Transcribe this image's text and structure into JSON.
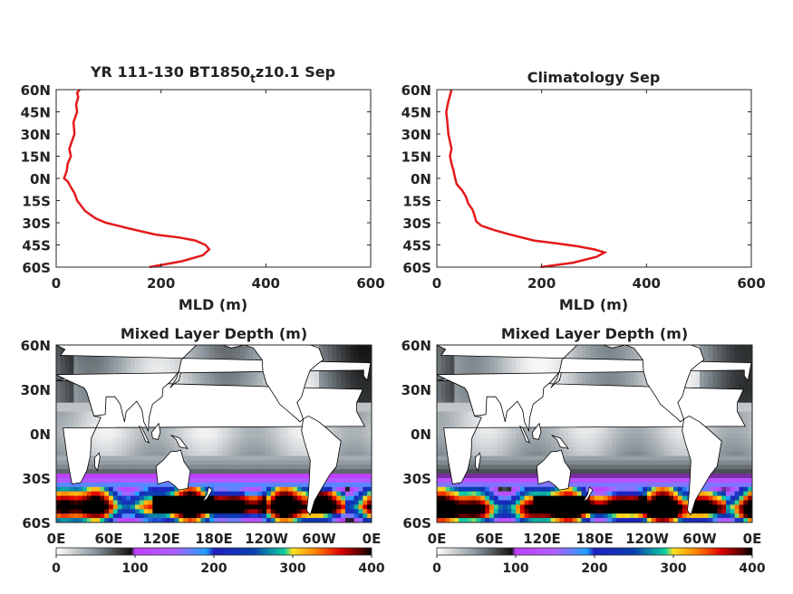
{
  "colors": {
    "profile_line": "#e41a1c",
    "land": "#ffffff",
    "frame": "#262626"
  },
  "colorbar": {
    "ticks": [
      "0",
      "100",
      "200",
      "300",
      "400"
    ],
    "stops": [
      {
        "v": 0,
        "c": "#ffffff"
      },
      {
        "v": 50,
        "c": "#8a949a"
      },
      {
        "v": 95,
        "c": "#111111"
      },
      {
        "v": 100,
        "c": "#c040ff"
      },
      {
        "v": 150,
        "c": "#b060ff"
      },
      {
        "v": 190,
        "c": "#20a0ff"
      },
      {
        "v": 200,
        "c": "#2020c0"
      },
      {
        "v": 250,
        "c": "#0a40b0"
      },
      {
        "v": 290,
        "c": "#10d0a0"
      },
      {
        "v": 300,
        "c": "#ffe020"
      },
      {
        "v": 330,
        "c": "#ff8000"
      },
      {
        "v": 360,
        "c": "#e00000"
      },
      {
        "v": 385,
        "c": "#600000"
      },
      {
        "v": 400,
        "c": "#000000"
      }
    ]
  },
  "chart_data": [
    {
      "type": "line",
      "title": "YR 111-130 BT1850",
      "title_sub": "t",
      "title_tail": "z10.1 Sep",
      "xlabel": "MLD (m)",
      "ylabel": "",
      "xlim": [
        0,
        600
      ],
      "ylim": [
        -60,
        60
      ],
      "xticks": [
        0,
        200,
        400,
        600
      ],
      "yticks": [
        60,
        45,
        30,
        15,
        0,
        -15,
        -30,
        -45,
        -60
      ],
      "ytick_labels": [
        "60N",
        "45N",
        "30N",
        "15N",
        "0N",
        "15S",
        "30S",
        "45S",
        "60S"
      ],
      "series": [
        {
          "name": "",
          "x": [
            178,
            240,
            280,
            292,
            285,
            265,
            235,
            190,
            140,
            95,
            75,
            55,
            40,
            35,
            28,
            22,
            15,
            20,
            22,
            28,
            25,
            30,
            35,
            33,
            40,
            38,
            42,
            40,
            45
          ],
          "y": [
            -60,
            -56,
            -52,
            -48,
            -45,
            -42,
            -40,
            -38,
            -34,
            -30,
            -27,
            -22,
            -15,
            -10,
            -6,
            -2,
            0,
            5,
            10,
            15,
            20,
            25,
            30,
            38,
            45,
            50,
            55,
            58,
            60
          ]
        }
      ]
    },
    {
      "type": "line",
      "title": "Climatology Sep",
      "xlabel": "MLD (m)",
      "ylabel": "",
      "xlim": [
        0,
        600
      ],
      "ylim": [
        -60,
        60
      ],
      "xticks": [
        0,
        200,
        400,
        600
      ],
      "yticks": [
        60,
        45,
        30,
        15,
        0,
        -15,
        -30,
        -45,
        -60
      ],
      "ytick_labels": [
        "60N",
        "45N",
        "30N",
        "15N",
        "0N",
        "15S",
        "30S",
        "45S",
        "60S"
      ],
      "series": [
        {
          "name": "",
          "x": [
            198,
            260,
            305,
            320,
            300,
            270,
            230,
            185,
            140,
            110,
            85,
            75,
            72,
            68,
            60,
            55,
            48,
            38,
            35,
            32,
            28,
            25,
            28,
            22,
            20,
            18,
            22,
            25,
            28
          ],
          "y": [
            -60,
            -57,
            -53,
            -50,
            -48,
            -46,
            -44,
            -42,
            -38,
            -35,
            -32,
            -29,
            -25,
            -21,
            -17,
            -12,
            -8,
            -4,
            0,
            5,
            10,
            15,
            20,
            30,
            38,
            45,
            52,
            56,
            60
          ]
        }
      ]
    },
    {
      "type": "heatmap",
      "title": "Mixed Layer Depth (m)",
      "xtick_labels": [
        "0E",
        "60E",
        "120E",
        "180E",
        "120W",
        "60W",
        "0E"
      ],
      "ytick_labels": [
        "60N",
        "30N",
        "0N",
        "30S",
        "60S"
      ],
      "xlim": [
        0,
        360
      ],
      "ylim": [
        -60,
        60
      ],
      "clim": [
        0,
        400
      ],
      "zonal_mean_mld": {
        "lat": [
          60,
          45,
          30,
          15,
          0,
          -15,
          -25,
          -30,
          -35,
          -40,
          -45,
          -50,
          -55,
          -60
        ],
        "mld": [
          40,
          35,
          30,
          28,
          20,
          35,
          60,
          120,
          180,
          260,
          330,
          380,
          300,
          180
        ]
      }
    },
    {
      "type": "heatmap",
      "title": "Mixed Layer Depth (m)",
      "xtick_labels": [
        "0E",
        "60E",
        "120E",
        "180E",
        "120W",
        "60W",
        "0E"
      ],
      "ytick_labels": [
        "60N",
        "30N",
        "0N",
        "30S",
        "60S"
      ],
      "xlim": [
        0,
        360
      ],
      "ylim": [
        -60,
        60
      ],
      "clim": [
        0,
        400
      ],
      "zonal_mean_mld": {
        "lat": [
          60,
          45,
          30,
          15,
          0,
          -15,
          -25,
          -30,
          -35,
          -40,
          -45,
          -50,
          -55,
          -60
        ],
        "mld": [
          30,
          28,
          30,
          25,
          25,
          40,
          70,
          110,
          170,
          240,
          320,
          390,
          360,
          200
        ]
      }
    }
  ]
}
